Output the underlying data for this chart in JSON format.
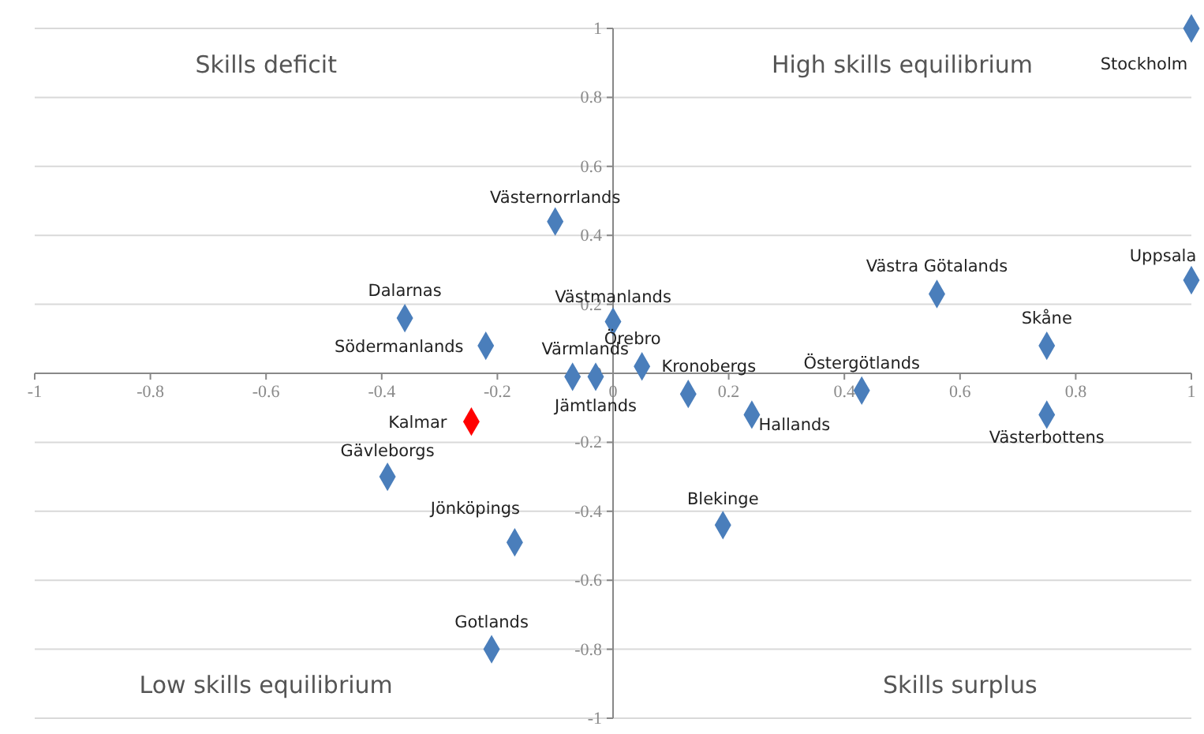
{
  "chart_data": {
    "type": "scatter",
    "marker": "diamond",
    "grid": "y",
    "xlim": [
      -1,
      1
    ],
    "xticks": [
      -1,
      -0.8,
      -0.6,
      -0.4,
      -0.2,
      0,
      0.2,
      0.4,
      0.6,
      0.8,
      1
    ],
    "ylim": [
      -1,
      1
    ],
    "yticks": [
      -1,
      -0.8,
      -0.6,
      -0.4,
      -0.2,
      0,
      0.2,
      0.4,
      0.6,
      0.8,
      1
    ],
    "series": [
      {
        "color": "#4a7ebb",
        "x": [
          1,
          1,
          0.56,
          0.75,
          0.75,
          0.43,
          0.24,
          0.13,
          0.05,
          0,
          -0.1,
          -0.36,
          -0.22,
          -0.07,
          -0.03,
          -0.39,
          -0.17,
          -0.21,
          0.19
        ],
        "values": [
          1,
          0.27,
          0.23,
          0.08,
          -0.12,
          -0.05,
          -0.12,
          -0.06,
          0.02,
          0.15,
          0.44,
          0.16,
          0.08,
          -0.01,
          -0.01,
          -0.3,
          -0.49,
          -0.8,
          -0.44
        ]
      },
      {
        "color": "#ff0000",
        "x": [
          -0.245
        ],
        "values": [
          -0.14
        ]
      }
    ],
    "annotations": [
      {
        "text": "Stockholm",
        "x": 1,
        "y": 1
      },
      {
        "text": "Uppsala",
        "x": 1,
        "y": 0.27
      },
      {
        "text": "Västra Götalands",
        "x": 0.56,
        "y": 0.23
      },
      {
        "text": "Skåne",
        "x": 0.75,
        "y": 0.08
      },
      {
        "text": "Västerbottens",
        "x": 0.75,
        "y": -0.12
      },
      {
        "text": "Östergötlands",
        "x": 0.43,
        "y": -0.05
      },
      {
        "text": "Hallands",
        "x": 0.24,
        "y": -0.12
      },
      {
        "text": "Kronobergs",
        "x": 0.13,
        "y": -0.06
      },
      {
        "text": "Örebro",
        "x": 0.05,
        "y": 0.02
      },
      {
        "text": "Västmanlands",
        "x": 0,
        "y": 0.15
      },
      {
        "text": "Västernorrlands",
        "x": -0.1,
        "y": 0.44
      },
      {
        "text": "Dalarnas",
        "x": -0.36,
        "y": 0.16
      },
      {
        "text": "Södermanlands",
        "x": -0.22,
        "y": 0.08
      },
      {
        "text": "Värmlands",
        "x": -0.07,
        "y": -0.01
      },
      {
        "text": "Jämtlands",
        "x": -0.03,
        "y": -0.01
      },
      {
        "text": "Kalmar",
        "x": -0.245,
        "y": -0.14
      },
      {
        "text": "Gävleborgs",
        "x": -0.39,
        "y": -0.3
      },
      {
        "text": "Jönköpings",
        "x": -0.17,
        "y": -0.49
      },
      {
        "text": "Gotlands",
        "x": -0.21,
        "y": -0.8
      },
      {
        "text": "Blekinge",
        "x": 0.19,
        "y": -0.44
      },
      "Skills deficit",
      "High skills equilibrium",
      "Low skills equilibrium",
      "Skills surplus"
    ]
  }
}
